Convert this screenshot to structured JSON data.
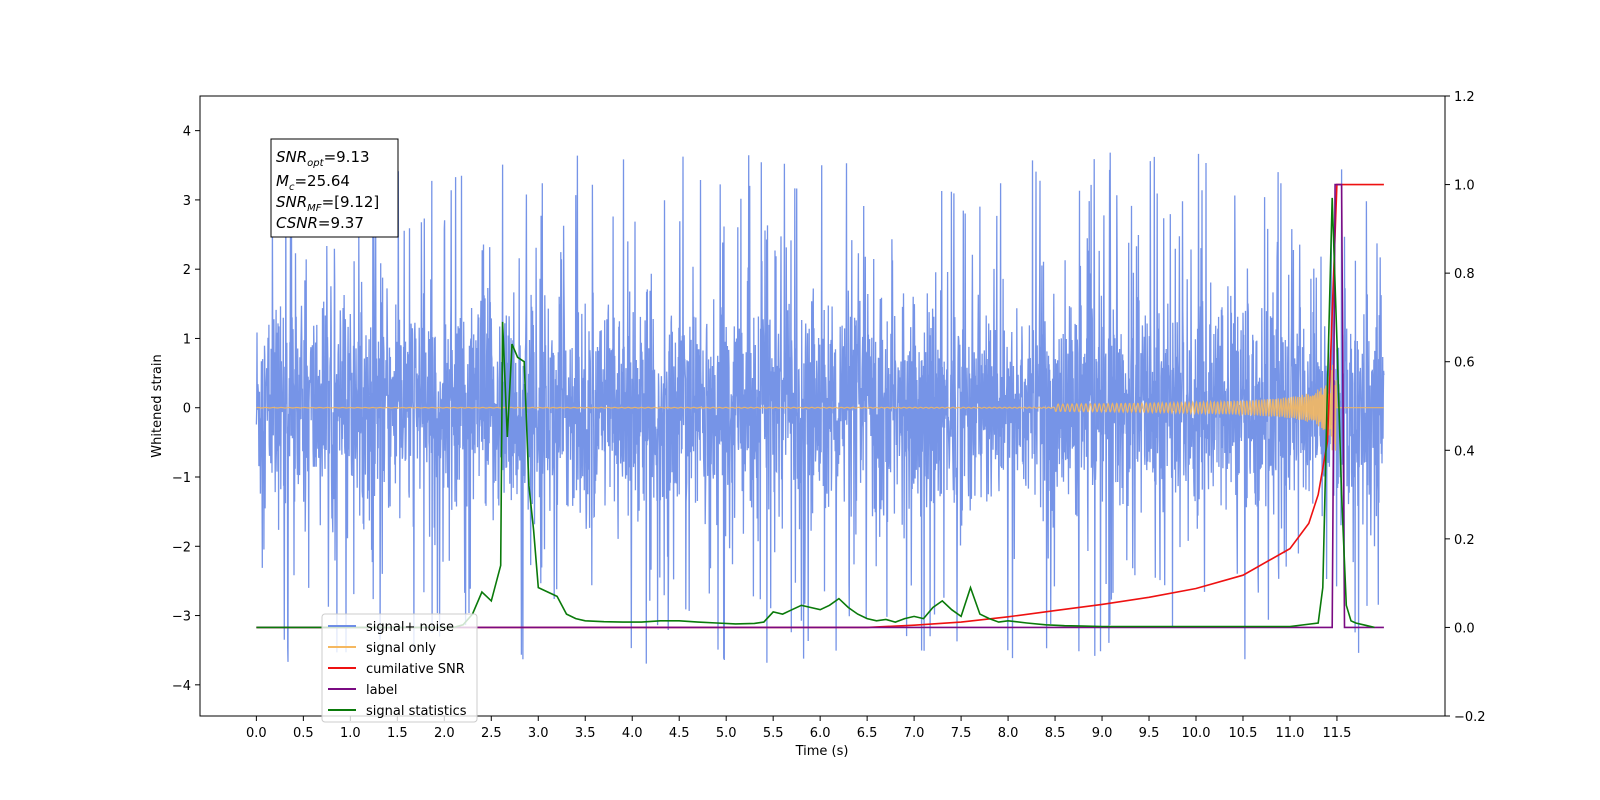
{
  "chart_data": {
    "type": "line",
    "xlabel": "Time (s)",
    "ylabel": "Whitened strain",
    "xlim": [
      -0.6,
      12.65
    ],
    "ylim": [
      -4.45,
      4.5
    ],
    "y2lim": [
      -0.2,
      1.2
    ],
    "x_ticks": [
      "0.0",
      "0.5",
      "1.0",
      "1.5",
      "2.0",
      "2.5",
      "3.0",
      "3.5",
      "4.0",
      "4.5",
      "5.0",
      "5.5",
      "6.0",
      "6.5",
      "7.0",
      "7.5",
      "8.0",
      "8.5",
      "9.0",
      "9.5",
      "10.0",
      "10.5",
      "11.0",
      "11.5"
    ],
    "y_ticks": [
      "4",
      "3",
      "2",
      "1",
      "0",
      "−1",
      "−2",
      "−3",
      "−4"
    ],
    "y2_ticks": [
      "1.2",
      "1.0",
      "0.8",
      "0.6",
      "0.4",
      "0.2",
      "0.0",
      "−0.2"
    ],
    "grid": false,
    "legend_position": "lower-left",
    "annotation": {
      "snr_opt": {
        "base": "SNR",
        "sub": "opt",
        "value": "=9.13"
      },
      "mc": {
        "base": "M",
        "sub": "c",
        "value": "=25.64"
      },
      "snr_mf": {
        "base": "SNR",
        "sub": "MF",
        "value": "=[9.12]"
      },
      "csnr": {
        "base": "CSNR",
        "value": "=9.37"
      }
    },
    "series": [
      {
        "name": "signal+ noise",
        "color": "#6f8ee6",
        "axis": "left",
        "x_range": [
          0.0,
          12.0
        ],
        "envelope_typical": 2.2,
        "envelope_peak": 4.1
      },
      {
        "name": "signal only",
        "color": "#f5b860",
        "axis": "left",
        "x_range": [
          0.0,
          12.0
        ],
        "peak_time": 11.5,
        "peak_amplitude": 0.62
      },
      {
        "name": "cumilative SNR",
        "color": "#ee1111",
        "axis": "right",
        "x": [
          0,
          6.5,
          7.0,
          7.5,
          8.0,
          8.5,
          9.0,
          9.5,
          10.0,
          10.5,
          11.0,
          11.2,
          11.3,
          11.4,
          11.5,
          12.0
        ],
        "y": [
          0,
          0,
          0.005,
          0.012,
          0.024,
          0.038,
          0.052,
          0.068,
          0.088,
          0.118,
          0.178,
          0.235,
          0.3,
          0.42,
          1.0,
          1.0
        ]
      },
      {
        "name": "label",
        "color": "#7a0a82",
        "axis": "right",
        "x": [
          0,
          11.35,
          11.45,
          11.48,
          11.55,
          11.58,
          11.6,
          12.0
        ],
        "y": [
          0,
          0,
          0,
          1.0,
          1.0,
          0,
          0,
          0
        ]
      },
      {
        "name": "signal statistics",
        "color": "#0a7a0a",
        "axis": "right",
        "x": [
          0,
          2.1,
          2.2,
          2.3,
          2.4,
          2.45,
          2.5,
          2.6,
          2.62,
          2.67,
          2.72,
          2.78,
          2.85,
          2.9,
          2.95,
          3.0,
          3.1,
          3.2,
          3.3,
          3.4,
          3.5,
          3.7,
          3.9,
          4.1,
          4.3,
          4.5,
          4.7,
          4.9,
          5.1,
          5.3,
          5.4,
          5.5,
          5.6,
          5.7,
          5.8,
          5.9,
          6.0,
          6.1,
          6.2,
          6.3,
          6.4,
          6.5,
          6.6,
          6.7,
          6.8,
          6.9,
          7.0,
          7.1,
          7.2,
          7.3,
          7.4,
          7.5,
          7.6,
          7.7,
          7.8,
          7.9,
          8.0,
          8.2,
          8.4,
          8.6,
          8.8,
          9.0,
          9.5,
          10.0,
          10.5,
          11.0,
          11.3,
          11.35,
          11.4,
          11.45,
          11.5,
          11.55,
          11.6,
          11.65,
          11.7,
          11.8,
          11.9
        ],
        "y": [
          0,
          0,
          0.006,
          0.03,
          0.08,
          0.07,
          0.06,
          0.14,
          0.69,
          0.43,
          0.64,
          0.61,
          0.6,
          0.32,
          0.22,
          0.09,
          0.08,
          0.07,
          0.03,
          0.02,
          0.015,
          0.013,
          0.012,
          0.012,
          0.015,
          0.015,
          0.012,
          0.01,
          0.008,
          0.009,
          0.012,
          0.035,
          0.03,
          0.04,
          0.05,
          0.045,
          0.04,
          0.05,
          0.065,
          0.045,
          0.03,
          0.02,
          0.015,
          0.018,
          0.012,
          0.02,
          0.025,
          0.02,
          0.045,
          0.06,
          0.04,
          0.025,
          0.09,
          0.03,
          0.02,
          0.012,
          0.015,
          0.01,
          0.006,
          0.004,
          0.003,
          0.002,
          0.002,
          0.002,
          0.002,
          0.002,
          0.01,
          0.09,
          0.55,
          0.97,
          0.65,
          0.3,
          0.05,
          0.015,
          0.01,
          0.005,
          0.0
        ]
      }
    ]
  }
}
